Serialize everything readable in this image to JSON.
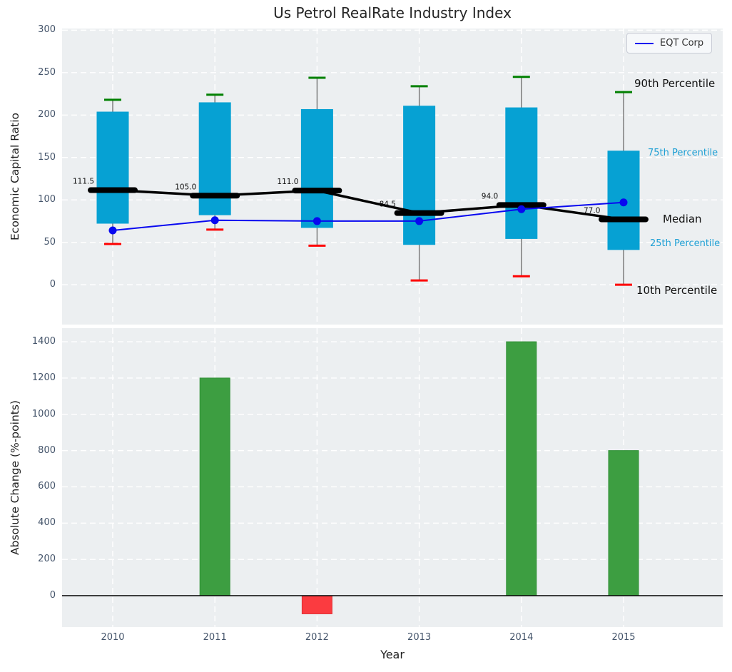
{
  "ui": {
    "legend": {
      "label": "EQT Corp"
    },
    "percentile_labels": {
      "p90": "90th Percentile",
      "p75": "75th Percentile",
      "median": "Median",
      "p25": "25th Percentile",
      "p10": "10th Percentile"
    },
    "colors": {
      "box_fill": "#06a1d3",
      "cap_90": "#008000",
      "cap_10": "#fe0000",
      "whisker": "#6a6a6a",
      "median_line": "#000000",
      "eqt_line": "#0808f0",
      "bar_positive": "#3d9e41",
      "bar_positive_edge": "#2f8f35",
      "bar_negative": "#fb3b40",
      "bar_negative_edge": "#e02d32",
      "panel_bg": "#eceff1",
      "grid": "#ffffff",
      "tick_label": "#44546a",
      "minor_label": "#1d9fd4"
    }
  },
  "chart_data": [
    {
      "type": "boxplot",
      "title": "Us Petrol RealRate Industry Index",
      "ylabel": "Economic Capital Ratio",
      "categories": [
        "2010",
        "2011",
        "2012",
        "2013",
        "2014",
        "2015"
      ],
      "series": [
        {
          "name": "90th Percentile",
          "values": [
            218,
            224,
            244,
            234,
            245,
            227
          ]
        },
        {
          "name": "75th Percentile",
          "values": [
            204,
            215,
            207,
            211,
            209,
            158
          ]
        },
        {
          "name": "Median",
          "values": [
            111.5,
            105.0,
            111.0,
            84.5,
            94.0,
            77.0
          ]
        },
        {
          "name": "25th Percentile",
          "values": [
            72,
            82,
            67,
            47,
            54,
            41
          ]
        },
        {
          "name": "10th Percentile",
          "values": [
            48,
            65,
            46,
            5,
            10,
            0
          ]
        },
        {
          "name": "EQT Corp",
          "values": [
            64,
            76,
            75,
            75,
            89,
            97
          ]
        }
      ],
      "median_labels": [
        "111.5",
        "105.0",
        "111.0",
        "84.5",
        "94.0",
        "77.0"
      ],
      "yticks": [
        0,
        50,
        100,
        150,
        200,
        250,
        300
      ],
      "ylim": [
        -47,
        302
      ],
      "legend_position": "upper right",
      "grid": true
    },
    {
      "type": "bar",
      "ylabel": "Absolute Change (%-points)",
      "xlabel": "Year",
      "categories": [
        "2010",
        "2011",
        "2012",
        "2013",
        "2014",
        "2015"
      ],
      "values": [
        0,
        1200,
        -100,
        0,
        1400,
        800
      ],
      "yticks": [
        0,
        200,
        400,
        600,
        800,
        1000,
        1200,
        1400
      ],
      "ylim": [
        -173,
        1475
      ],
      "grid": true
    }
  ]
}
